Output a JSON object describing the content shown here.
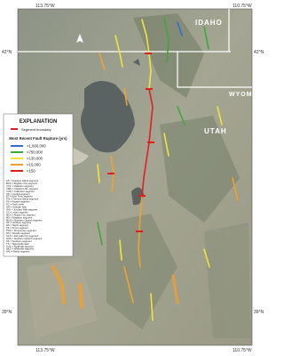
{
  "coords": {
    "top_left": "113.75°W",
    "top_right": "110.75°W",
    "bottom_left": "113.75°W",
    "bottom_right": "110.75°W",
    "left_top": "42°N",
    "right_top": "42°N",
    "left_bottom": "39°N",
    "right_bottom": "39°N"
  },
  "states": {
    "idaho": "IDAHO",
    "wyoming": "WYOMING",
    "utah": "UTAH"
  },
  "legend": {
    "title": "EXPLANATION",
    "boundary": "Segment boundary",
    "subtitle": "Most Recent Fault Rupture (yrs)",
    "items": [
      {
        "label": "<1,600,000",
        "color": "#2f6fd0"
      },
      {
        "label": "<750,000",
        "color": "#3fa83a"
      },
      {
        "label": "<130,000",
        "color": "#f2e43a"
      },
      {
        "label": "<15,000",
        "color": "#f0a030"
      },
      {
        "label": "<150",
        "color": "#e02020"
      }
    ],
    "abbreviations": [
      "AS = Antelope Island segment",
      "BCS = Brigham City segment",
      "CLS = Clarkston segment",
      "CMS = Clarkston Mt. segment",
      "COS = Collinston segment",
      "CS = Central segment",
      "ET = East Tintic segment",
      "FIS = Fremont Island segment",
      "FS = Fayette segment",
      "FC = Fault creek",
      "GR = Granger fault",
      "JHS = Junction Hills segment",
      "LS = Levan segment",
      "MCS = Malad City segment",
      "MS = Mapleton segment",
      "MOS = Northern Oquirrh segment",
      "NF = Northern segment",
      "NS = Nephi segment",
      "PS = Provo segment",
      "POS = Promontory segment",
      "RS = Rozelle segment",
      "SCS = Salt Lake City segment",
      "SOS = Southern Oquirrh segment",
      "SS = Southern segment",
      "TS = Taylorsville fault",
      "THS = Topliff Hill segment",
      "WLS = Wellsville segment",
      "WS = Weber segment"
    ]
  }
}
